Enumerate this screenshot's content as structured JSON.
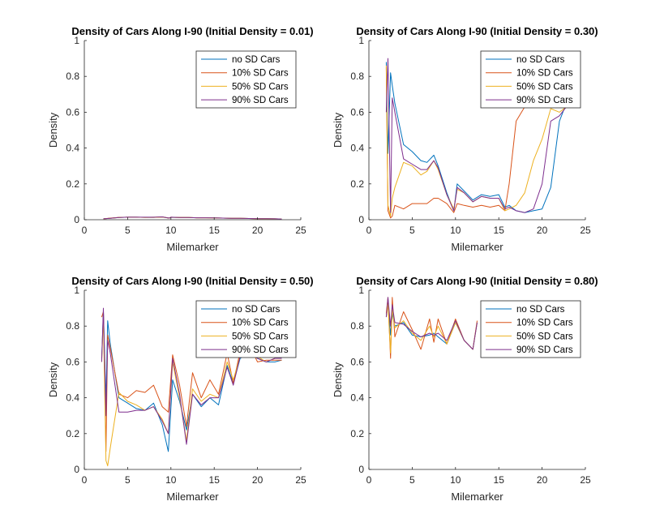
{
  "figure": {
    "background": "#ffffff"
  },
  "series_styles": [
    {
      "name": "no SD Cars",
      "color": "#0072BD"
    },
    {
      "name": "10% SD Cars",
      "color": "#D95319"
    },
    {
      "name": "50% SD Cars",
      "color": "#EDB120"
    },
    {
      "name": "90% SD Cars",
      "color": "#7E2F8E"
    }
  ],
  "chart_data": [
    {
      "type": "line",
      "title": "Density of Cars Along I-90 (Initial Density = 0.01)",
      "xlabel": "Milemarker",
      "ylabel": "Density",
      "xlim": [
        0,
        25
      ],
      "ylim": [
        0,
        1
      ],
      "xticks": [
        0,
        5,
        10,
        15,
        20,
        25
      ],
      "yticks": [
        0,
        0.2,
        0.4,
        0.6,
        0.8,
        1
      ],
      "grid": false,
      "legend_position": "top-right",
      "series": [
        {
          "name": "no SD Cars",
          "x": [
            2.2,
            3,
            4,
            5,
            6,
            7,
            8,
            9,
            9.8,
            10,
            11,
            12,
            13,
            14,
            15,
            16,
            17,
            18,
            19,
            20,
            21,
            22,
            22.8
          ],
          "y": [
            0.005,
            0.008,
            0.012,
            0.014,
            0.014,
            0.013,
            0.013,
            0.015,
            0.009,
            0.013,
            0.012,
            0.012,
            0.011,
            0.011,
            0.01,
            0.009,
            0.008,
            0.008,
            0.007,
            0.006,
            0.006,
            0.005,
            0.004
          ]
        },
        {
          "name": "10% SD Cars",
          "x": [
            2.2,
            3,
            4,
            5,
            6,
            7,
            8,
            9,
            9.8,
            10,
            11,
            12,
            13,
            14,
            15,
            16,
            17,
            18,
            19,
            20,
            21,
            22,
            22.8
          ],
          "y": [
            0.005,
            0.009,
            0.013,
            0.014,
            0.014,
            0.013,
            0.013,
            0.016,
            0.009,
            0.014,
            0.012,
            0.012,
            0.011,
            0.011,
            0.01,
            0.009,
            0.008,
            0.008,
            0.007,
            0.006,
            0.006,
            0.005,
            0.004
          ]
        },
        {
          "name": "50% SD Cars",
          "x": [
            2.2,
            3,
            4,
            5,
            6,
            7,
            8,
            9,
            9.8,
            10,
            11,
            12,
            13,
            14,
            15,
            16,
            17,
            18,
            19,
            20,
            21,
            22,
            22.8
          ],
          "y": [
            0.005,
            0.008,
            0.012,
            0.014,
            0.014,
            0.013,
            0.014,
            0.015,
            0.009,
            0.013,
            0.012,
            0.012,
            0.011,
            0.011,
            0.01,
            0.009,
            0.008,
            0.008,
            0.007,
            0.006,
            0.006,
            0.005,
            0.004
          ]
        },
        {
          "name": "90% SD Cars",
          "x": [
            2.2,
            3,
            4,
            5,
            6,
            7,
            8,
            9,
            9.8,
            10,
            11,
            12,
            13,
            14,
            15,
            16,
            17,
            18,
            19,
            20,
            21,
            22,
            22.8
          ],
          "y": [
            0.005,
            0.008,
            0.012,
            0.014,
            0.014,
            0.014,
            0.014,
            0.016,
            0.009,
            0.014,
            0.012,
            0.012,
            0.011,
            0.011,
            0.01,
            0.009,
            0.008,
            0.008,
            0.007,
            0.006,
            0.006,
            0.005,
            0.004
          ]
        }
      ]
    },
    {
      "type": "line",
      "title": "Density of Cars Along I-90 (Initial Density = 0.30)",
      "xlabel": "Milemarker",
      "ylabel": "Density",
      "xlim": [
        0,
        25
      ],
      "ylim": [
        0,
        1
      ],
      "xticks": [
        0,
        5,
        10,
        15,
        20,
        25
      ],
      "yticks": [
        0,
        0.2,
        0.4,
        0.6,
        0.8,
        1
      ],
      "grid": false,
      "legend_position": "top-right",
      "series": [
        {
          "name": "no SD Cars",
          "x": [
            2,
            2.2,
            2.5,
            2.7,
            3,
            4,
            5,
            6,
            6.7,
            7.5,
            8,
            9,
            9.8,
            10.2,
            11,
            12,
            13,
            14,
            15,
            15.7,
            16.2,
            17,
            18,
            19,
            20,
            21,
            22,
            22.8
          ],
          "y": [
            0.88,
            0.37,
            0.82,
            0.75,
            0.65,
            0.42,
            0.38,
            0.33,
            0.32,
            0.36,
            0.3,
            0.15,
            0.05,
            0.2,
            0.16,
            0.11,
            0.14,
            0.13,
            0.14,
            0.07,
            0.08,
            0.05,
            0.04,
            0.05,
            0.06,
            0.18,
            0.55,
            0.65
          ]
        },
        {
          "name": "10% SD Cars",
          "x": [
            2,
            2.2,
            2.5,
            2.7,
            3,
            4,
            5,
            6,
            6.7,
            7.5,
            8,
            9,
            9.8,
            10.2,
            11,
            12,
            13,
            14,
            15,
            15.7,
            16.2,
            17,
            18,
            19,
            20,
            21,
            22,
            22.8
          ],
          "y": [
            0.85,
            0.05,
            0.01,
            0.02,
            0.08,
            0.06,
            0.09,
            0.09,
            0.09,
            0.12,
            0.12,
            0.09,
            0.04,
            0.09,
            0.08,
            0.07,
            0.08,
            0.07,
            0.08,
            0.05,
            0.2,
            0.55,
            0.63,
            0.68,
            0.7,
            0.7,
            0.7,
            0.7
          ]
        },
        {
          "name": "50% SD Cars",
          "x": [
            2,
            2.2,
            2.5,
            2.7,
            3,
            4,
            5,
            6,
            6.7,
            7.5,
            8,
            9,
            9.8,
            10.2,
            11,
            12,
            13,
            14,
            15,
            15.7,
            16.2,
            17,
            18,
            19,
            20,
            21,
            22,
            22.8
          ],
          "y": [
            0.86,
            0.08,
            0.02,
            0.12,
            0.18,
            0.32,
            0.3,
            0.25,
            0.27,
            0.33,
            0.28,
            0.14,
            0.06,
            0.17,
            0.15,
            0.1,
            0.13,
            0.12,
            0.12,
            0.05,
            0.06,
            0.08,
            0.15,
            0.33,
            0.45,
            0.62,
            0.6,
            0.63
          ]
        },
        {
          "name": "90% SD Cars",
          "x": [
            2,
            2.2,
            2.5,
            2.7,
            3,
            4,
            5,
            6,
            6.7,
            7.5,
            8,
            9,
            9.8,
            10.2,
            11,
            12,
            13,
            14,
            15,
            15.7,
            16.2,
            17,
            18,
            19,
            20,
            21,
            22,
            22.8
          ],
          "y": [
            0.6,
            0.9,
            0.04,
            0.68,
            0.6,
            0.34,
            0.31,
            0.28,
            0.28,
            0.33,
            0.29,
            0.14,
            0.05,
            0.18,
            0.15,
            0.1,
            0.13,
            0.12,
            0.12,
            0.06,
            0.07,
            0.05,
            0.04,
            0.06,
            0.2,
            0.55,
            0.58,
            0.63
          ]
        }
      ]
    },
    {
      "type": "line",
      "title": "Density of Cars Along I-90 (Initial Density = 0.50)",
      "xlabel": "Milemarker",
      "ylabel": "Density",
      "xlim": [
        0,
        25
      ],
      "ylim": [
        0,
        1
      ],
      "xticks": [
        0,
        5,
        10,
        15,
        20,
        25
      ],
      "yticks": [
        0,
        0.2,
        0.4,
        0.6,
        0.8,
        1
      ],
      "grid": false,
      "legend_position": "top-right",
      "series": [
        {
          "name": "no SD Cars",
          "x": [
            2,
            2.2,
            2.5,
            2.7,
            3,
            4,
            5,
            6,
            7,
            8,
            9,
            9.7,
            10.2,
            11,
            11.8,
            12.5,
            13.5,
            14.5,
            15.5,
            16.5,
            17.2,
            18,
            19,
            20,
            21,
            22,
            22.8
          ],
          "y": [
            0.62,
            0.88,
            0.38,
            0.83,
            0.7,
            0.4,
            0.37,
            0.34,
            0.33,
            0.37,
            0.25,
            0.1,
            0.5,
            0.38,
            0.22,
            0.42,
            0.35,
            0.4,
            0.36,
            0.58,
            0.48,
            0.62,
            0.65,
            0.62,
            0.6,
            0.6,
            0.61
          ]
        },
        {
          "name": "10% SD Cars",
          "x": [
            2,
            2.2,
            2.5,
            2.7,
            3,
            4,
            5,
            6,
            7,
            8,
            9,
            9.7,
            10.2,
            11,
            11.8,
            12.5,
            13.5,
            14.5,
            15.5,
            16.5,
            17.2,
            18,
            19,
            20,
            21,
            22,
            22.8
          ],
          "y": [
            0.85,
            0.88,
            0.1,
            0.75,
            0.68,
            0.42,
            0.4,
            0.44,
            0.43,
            0.47,
            0.35,
            0.32,
            0.64,
            0.47,
            0.24,
            0.54,
            0.4,
            0.5,
            0.42,
            0.65,
            0.48,
            0.66,
            0.7,
            0.6,
            0.61,
            0.61,
            0.61
          ]
        },
        {
          "name": "50% SD Cars",
          "x": [
            2,
            2.2,
            2.5,
            2.7,
            3,
            4,
            5,
            6,
            7,
            8,
            9,
            9.7,
            10.2,
            11,
            11.8,
            12.5,
            13.5,
            14.5,
            15.5,
            16.5,
            17.2,
            18,
            19,
            20,
            21,
            22,
            22.8
          ],
          "y": [
            0.6,
            0.85,
            0.05,
            0.02,
            0.12,
            0.43,
            0.38,
            0.36,
            0.33,
            0.35,
            0.28,
            0.2,
            0.6,
            0.4,
            0.16,
            0.45,
            0.38,
            0.42,
            0.4,
            0.6,
            0.5,
            0.63,
            0.66,
            0.63,
            0.6,
            0.62,
            0.62
          ]
        },
        {
          "name": "90% SD Cars",
          "x": [
            2,
            2.2,
            2.5,
            2.7,
            3,
            4,
            5,
            6,
            7,
            8,
            9,
            9.7,
            10.2,
            11,
            11.8,
            12.5,
            13.5,
            14.5,
            15.5,
            16.5,
            17.2,
            18,
            19,
            20,
            21,
            22,
            22.8
          ],
          "y": [
            0.6,
            0.9,
            0.3,
            0.72,
            0.65,
            0.32,
            0.32,
            0.33,
            0.33,
            0.35,
            0.27,
            0.2,
            0.62,
            0.42,
            0.14,
            0.42,
            0.36,
            0.4,
            0.4,
            0.57,
            0.47,
            0.63,
            0.67,
            0.62,
            0.6,
            0.62,
            0.62
          ]
        }
      ]
    },
    {
      "type": "line",
      "title": "Density of Cars Along I-90 (Initial Density = 0.80)",
      "xlabel": "Milemarker",
      "ylabel": "Density",
      "xlim": [
        0,
        25
      ],
      "ylim": [
        0,
        1
      ],
      "xticks": [
        0,
        5,
        10,
        15,
        20,
        25
      ],
      "yticks": [
        0,
        0.2,
        0.4,
        0.6,
        0.8,
        1
      ],
      "grid": false,
      "legend_position": "top-right",
      "series": [
        {
          "name": "no SD Cars",
          "x": [
            2,
            2.2,
            2.5,
            2.7,
            3,
            4,
            5,
            6,
            7,
            7.5,
            8,
            9,
            10,
            11,
            12,
            12.5
          ],
          "y": [
            0.85,
            0.95,
            0.75,
            0.87,
            0.8,
            0.82,
            0.75,
            0.74,
            0.75,
            0.76,
            0.74,
            0.7,
            0.82,
            0.72,
            0.67,
            0.82
          ]
        },
        {
          "name": "10% SD Cars",
          "x": [
            2,
            2.2,
            2.5,
            2.7,
            3,
            4,
            5,
            6,
            7,
            7.5,
            8,
            9,
            10,
            11,
            12,
            12.5
          ],
          "y": [
            0.87,
            0.96,
            0.62,
            0.96,
            0.74,
            0.88,
            0.78,
            0.67,
            0.84,
            0.71,
            0.84,
            0.7,
            0.84,
            0.72,
            0.67,
            0.83
          ]
        },
        {
          "name": "50% SD Cars",
          "x": [
            2,
            2.2,
            2.5,
            2.7,
            3,
            4,
            5,
            6,
            7,
            7.5,
            8,
            9,
            10,
            11,
            12,
            12.5
          ],
          "y": [
            0.85,
            0.92,
            0.65,
            0.9,
            0.79,
            0.83,
            0.76,
            0.72,
            0.8,
            0.74,
            0.8,
            0.7,
            0.82,
            0.72,
            0.67,
            0.82
          ]
        },
        {
          "name": "90% SD Cars",
          "x": [
            2,
            2.2,
            2.5,
            2.7,
            3,
            4,
            5,
            6,
            7,
            7.5,
            8,
            9,
            10,
            11,
            12,
            12.5
          ],
          "y": [
            0.85,
            0.96,
            0.8,
            0.92,
            0.82,
            0.81,
            0.77,
            0.74,
            0.76,
            0.75,
            0.76,
            0.72,
            0.83,
            0.72,
            0.67,
            0.82
          ]
        }
      ]
    }
  ]
}
